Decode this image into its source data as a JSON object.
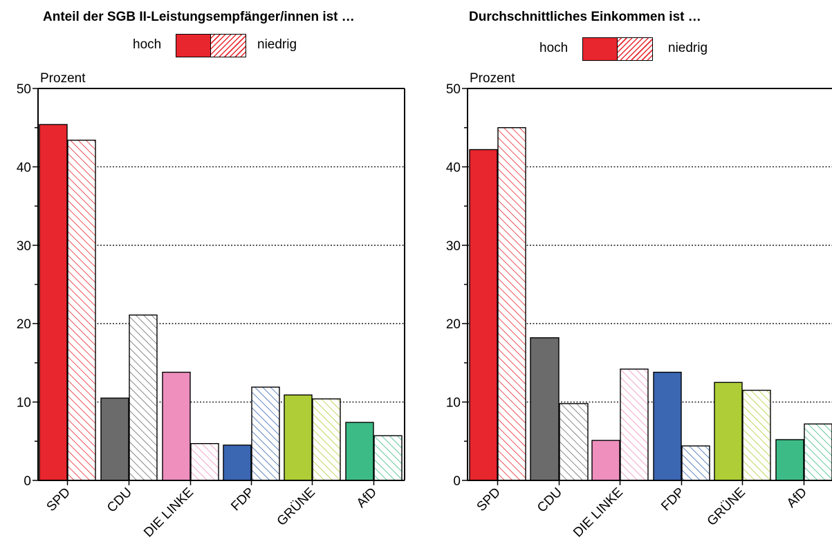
{
  "series_names": [
    "hoch",
    "niedrig"
  ],
  "colors": {
    "SPD": "#e8262d",
    "CDU": "#6b6b6b",
    "DIE LINKE": "#ee8fbe",
    "FDP": "#3a66b2",
    "GRÜNE": "#aecd37",
    "AfD": "#3dbb86",
    "legend": "#e8262d"
  },
  "chart_data": [
    {
      "type": "bar",
      "title": "Anteil der SGB II-Leistungsempfänger/innen ist …",
      "ylabel": "Prozent",
      "categories": [
        "SPD",
        "CDU",
        "DIE LINKE",
        "FDP",
        "GRÜNE",
        "AfD"
      ],
      "series": [
        {
          "name": "hoch",
          "values": [
            45.4,
            10.5,
            13.8,
            4.5,
            10.9,
            7.4
          ]
        },
        {
          "name": "niedrig",
          "values": [
            43.4,
            21.1,
            4.7,
            11.9,
            10.4,
            5.7
          ]
        }
      ],
      "ylim": [
        0,
        50
      ],
      "yticks": [
        0,
        10,
        20,
        30,
        40,
        50
      ],
      "grid": "dotted horizontal lines at 10, 20, 30, 40",
      "legend": "top, horizontal"
    },
    {
      "type": "bar",
      "title": "Durchschnittliches Einkommen ist …",
      "ylabel": "Prozent",
      "categories": [
        "SPD",
        "CDU",
        "DIE LINKE",
        "FDP",
        "GRÜNE",
        "AfD"
      ],
      "series": [
        {
          "name": "hoch",
          "values": [
            42.2,
            18.2,
            5.1,
            13.8,
            12.5,
            5.2
          ]
        },
        {
          "name": "niedrig",
          "values": [
            45.0,
            9.8,
            14.2,
            4.4,
            11.5,
            7.2
          ]
        }
      ],
      "ylim": [
        0,
        50
      ],
      "yticks": [
        0,
        10,
        20,
        30,
        40,
        50
      ],
      "grid": "dotted horizontal lines at 10, 20, 30, 40",
      "legend": "top, horizontal"
    }
  ]
}
